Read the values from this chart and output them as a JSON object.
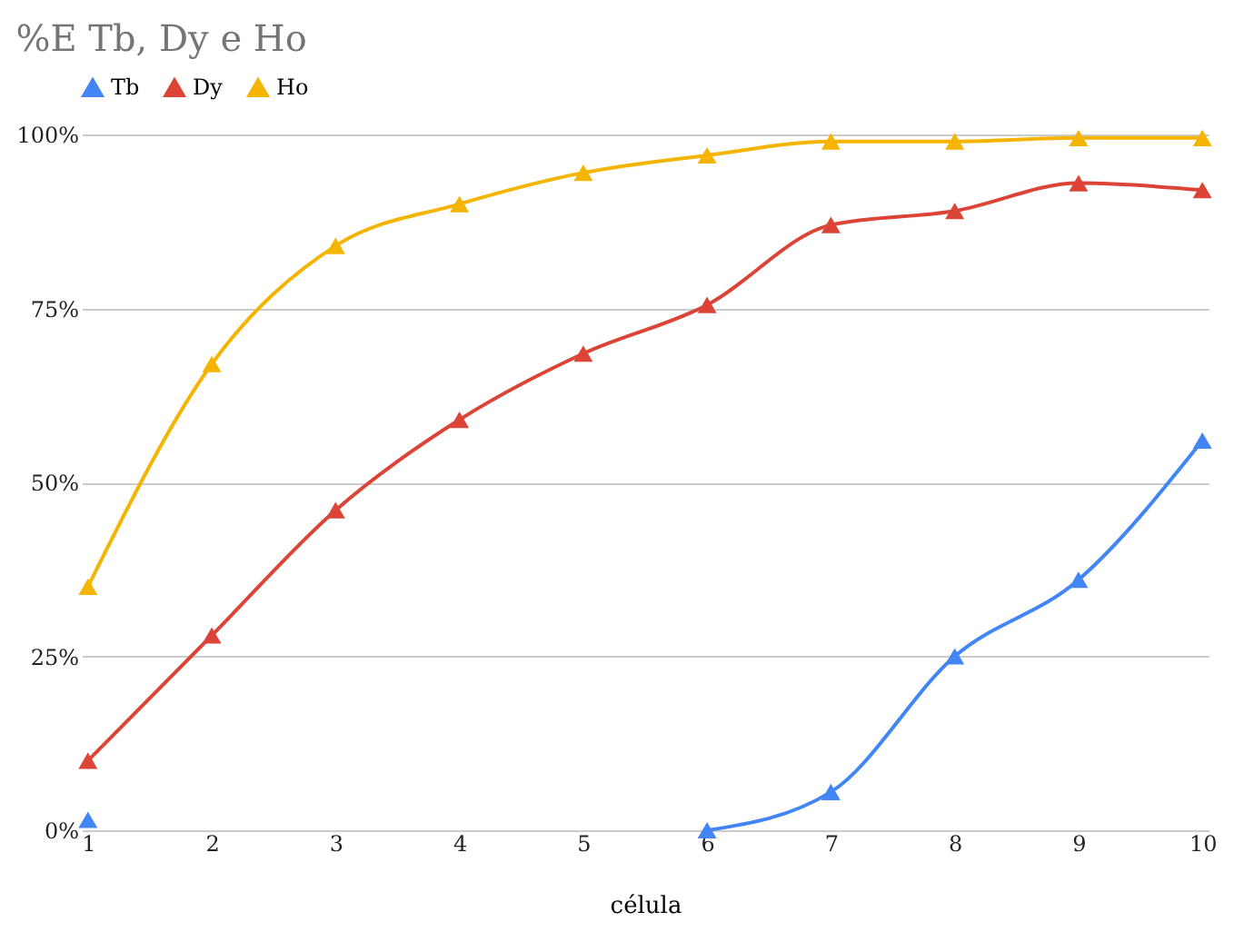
{
  "chart_data": {
    "type": "line",
    "title": "%E Tb, Dy e Ho",
    "xlabel": "célula",
    "categories": [
      "1",
      "2",
      "3",
      "4",
      "5",
      "6",
      "7",
      "8",
      "9",
      "10"
    ],
    "series": [
      {
        "name": "Tb",
        "color": "#4285f4",
        "values": [
          1.5,
          null,
          null,
          null,
          null,
          0,
          5.5,
          25,
          36,
          56
        ]
      },
      {
        "name": "Dy",
        "color": "#db4437",
        "values": [
          10,
          28,
          46,
          59,
          68.5,
          75.5,
          87,
          89,
          93,
          92
        ]
      },
      {
        "name": "Ho",
        "color": "#f4b400",
        "values": [
          35,
          67,
          84,
          90,
          94.5,
          97,
          99,
          99,
          99.5,
          99.5
        ]
      }
    ],
    "ylim": [
      0,
      100
    ],
    "yticks": [
      {
        "value": 0,
        "label": "0%"
      },
      {
        "value": 25,
        "label": "25%"
      },
      {
        "value": 50,
        "label": "50%"
      },
      {
        "value": 75,
        "label": "75%"
      },
      {
        "value": 100,
        "label": "100%"
      }
    ],
    "grid": "y",
    "legend": "top",
    "marker": "triangle",
    "line_style": "solid"
  }
}
